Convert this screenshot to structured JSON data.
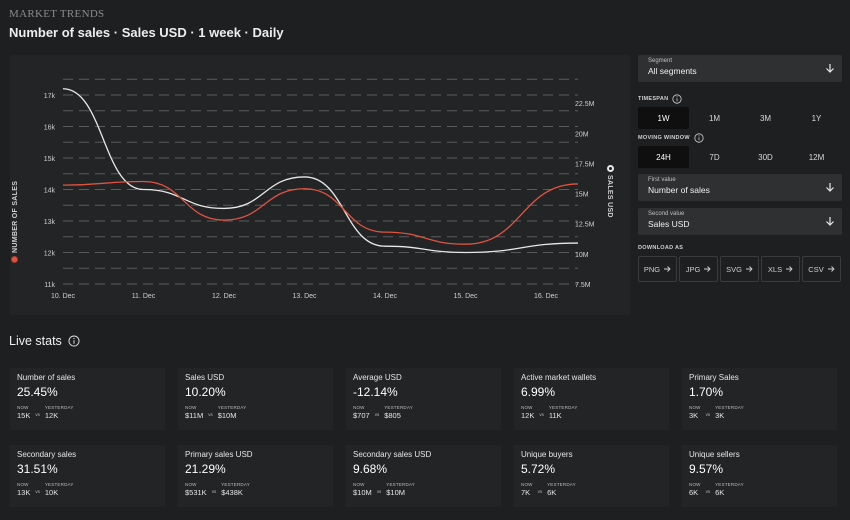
{
  "header": {
    "brand": "MARKET TRENDS",
    "subtitle": "Number of sales · Sales USD · 1 week · Daily"
  },
  "chart_data": {
    "type": "line",
    "x": [
      "10. Dec",
      "11. Dec",
      "12. Dec",
      "13. Dec",
      "14. Dec",
      "15. Dec",
      "16. Dec"
    ],
    "left_axis": {
      "label": "NUMBER OF SALES",
      "ticks": [
        "11k",
        "12k",
        "13k",
        "14k",
        "15k",
        "16k",
        "17k"
      ],
      "range": [
        11000,
        17700
      ]
    },
    "right_axis": {
      "label": "SALES USD",
      "ticks": [
        "7.5M",
        "10M",
        "12.5M",
        "15M",
        "17.5M",
        "20M",
        "22.5M"
      ],
      "range": [
        7500000,
        25000000
      ]
    },
    "series": [
      {
        "name": "Number of sales",
        "axis": "left",
        "color": "#e8e8e8",
        "values": [
          17200,
          14000,
          13400,
          14400,
          12200,
          12000,
          12300
        ]
      },
      {
        "name": "Sales USD",
        "axis": "right",
        "color": "#e0533f",
        "values": [
          15700000,
          16000000,
          12800000,
          15400000,
          11800000,
          10800000,
          15800000
        ]
      }
    ],
    "grid": true
  },
  "controls": {
    "segment": {
      "label": "Segment",
      "value": "All segments"
    },
    "timespan": {
      "label": "TIMESPAN",
      "options": [
        "1W",
        "1M",
        "3M",
        "1Y"
      ],
      "selected": "1W"
    },
    "moving_window": {
      "label": "MOVING WINDOW",
      "options": [
        "24H",
        "7D",
        "30D",
        "12M"
      ],
      "selected": "24H"
    },
    "first_value": {
      "label": "First value",
      "value": "Number of sales"
    },
    "second_value": {
      "label": "Second value",
      "value": "Sales USD"
    },
    "download": {
      "label": "DOWNLOAD AS",
      "formats": [
        "PNG",
        "JPG",
        "SVG",
        "XLS",
        "CSV"
      ]
    }
  },
  "live_stats": {
    "title": "Live stats",
    "now_label": "NOW",
    "vs_label": "vs",
    "yesterday_label": "YESTERDAY",
    "cards": [
      {
        "name": "Number of sales",
        "pct": "25.45%",
        "now": "15K",
        "yesterday": "12K"
      },
      {
        "name": "Sales USD",
        "pct": "10.20%",
        "now": "$11M",
        "yesterday": "$10M"
      },
      {
        "name": "Average USD",
        "pct": "-12.14%",
        "now": "$707",
        "yesterday": "$805"
      },
      {
        "name": "Active market wallets",
        "pct": "6.99%",
        "now": "12K",
        "yesterday": "11K"
      },
      {
        "name": "Primary Sales",
        "pct": "1.70%",
        "now": "3K",
        "yesterday": "3K"
      },
      {
        "name": "Secondary sales",
        "pct": "31.51%",
        "now": "13K",
        "yesterday": "10K"
      },
      {
        "name": "Primary sales USD",
        "pct": "21.29%",
        "now": "$531K",
        "yesterday": "$438K"
      },
      {
        "name": "Secondary sales USD",
        "pct": "9.68%",
        "now": "$10M",
        "yesterday": "$10M"
      },
      {
        "name": "Unique buyers",
        "pct": "5.72%",
        "now": "7K",
        "yesterday": "6K"
      },
      {
        "name": "Unique sellers",
        "pct": "9.57%",
        "now": "6K",
        "yesterday": "6K"
      }
    ]
  }
}
